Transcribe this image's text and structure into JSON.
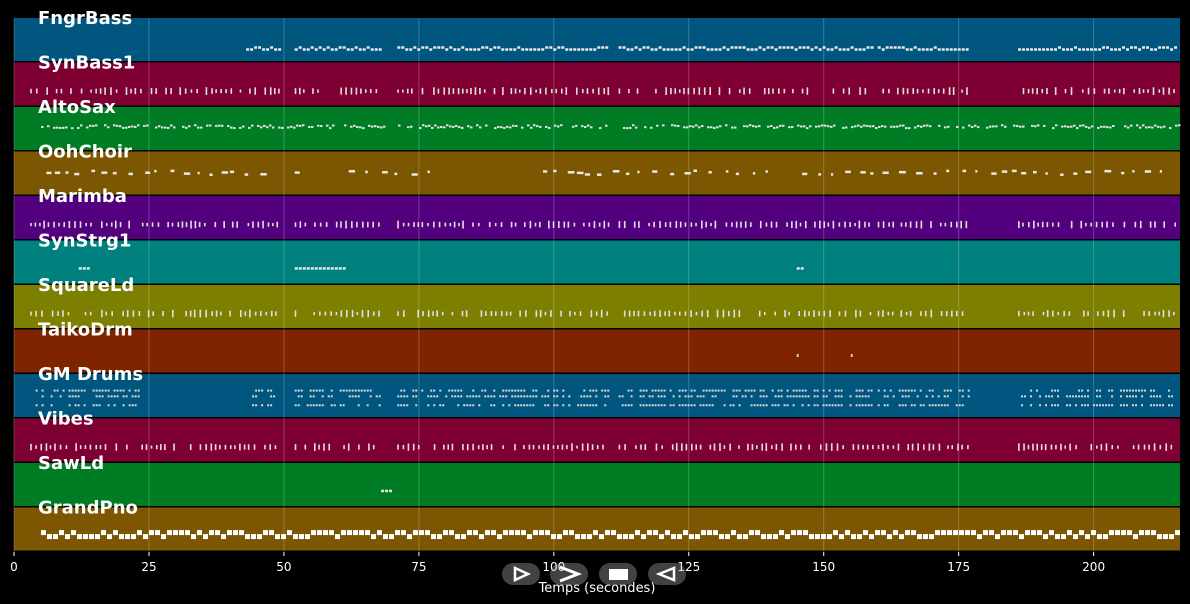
{
  "chart_data": {
    "type": "piano-roll",
    "xlabel": "Temps (secondes)",
    "xlim": [
      0,
      216
    ],
    "x_ticks": [
      0,
      25,
      50,
      75,
      100,
      125,
      150,
      175,
      200
    ],
    "tracks": [
      {
        "name": "FngrBass",
        "color": "#00567f",
        "segments": [
          [
            43,
            49
          ],
          [
            52,
            68
          ],
          [
            71,
            110
          ],
          [
            112,
            159
          ],
          [
            160,
            177
          ],
          [
            186,
            215
          ]
        ],
        "style": "bass"
      },
      {
        "name": "SynBass1",
        "color": "#7e0033",
        "segments": [
          [
            3,
            49
          ],
          [
            52,
            68
          ],
          [
            71,
            110
          ],
          [
            112,
            159
          ],
          [
            160,
            177
          ],
          [
            186,
            215
          ]
        ],
        "style": "ticks"
      },
      {
        "name": "AltoSax",
        "color": "#007c24",
        "segments": [
          [
            5,
            216
          ]
        ],
        "style": "dense"
      },
      {
        "name": "OohChoir",
        "color": "#7c5600",
        "segments": [
          [
            6,
            46
          ],
          [
            52,
            54
          ],
          [
            62,
            78
          ],
          [
            98,
            106
          ],
          [
            108,
            140
          ],
          [
            146,
            200
          ],
          [
            202,
            214
          ]
        ],
        "style": "sparse"
      },
      {
        "name": "Marimba",
        "color": "#53007f",
        "segments": [
          [
            3,
            49
          ],
          [
            52,
            68
          ],
          [
            71,
            110
          ],
          [
            112,
            159
          ],
          [
            160,
            177
          ],
          [
            186,
            215
          ]
        ],
        "style": "ticks"
      },
      {
        "name": "SynStrg1",
        "color": "#00807f",
        "segments": [
          [
            12,
            14
          ],
          [
            52,
            61
          ],
          [
            145,
            146
          ]
        ],
        "style": "short"
      },
      {
        "name": "SquareLd",
        "color": "#7c7f00",
        "segments": [
          [
            3,
            49
          ],
          [
            52,
            68
          ],
          [
            71,
            110
          ],
          [
            112,
            159
          ],
          [
            160,
            177
          ],
          [
            186,
            215
          ]
        ],
        "style": "ticks"
      },
      {
        "name": "TaikoDrm",
        "color": "#7f2400",
        "segments": [
          [
            145,
            146
          ],
          [
            155,
            156
          ]
        ],
        "style": "dots"
      },
      {
        "name": "GM Drums",
        "color": "#00567f",
        "segments": [
          [
            4,
            23
          ],
          [
            43,
            49
          ],
          [
            52,
            68
          ],
          [
            71,
            110
          ],
          [
            112,
            159
          ],
          [
            160,
            177
          ],
          [
            186,
            215
          ]
        ],
        "style": "drums"
      },
      {
        "name": "Vibes",
        "color": "#7e0033",
        "segments": [
          [
            3,
            49
          ],
          [
            52,
            68
          ],
          [
            71,
            110
          ],
          [
            112,
            159
          ],
          [
            160,
            177
          ],
          [
            186,
            215
          ]
        ],
        "style": "ticks"
      },
      {
        "name": "SawLd",
        "color": "#007c24",
        "segments": [
          [
            68,
            70
          ]
        ],
        "style": "short"
      },
      {
        "name": "GrandPno",
        "color": "#7c5600",
        "segments": [
          [
            5,
            216
          ]
        ],
        "style": "piano"
      }
    ]
  },
  "controls": {
    "play_icon": "play-outline-icon",
    "forward_icon": "fast-forward-icon",
    "stop_icon": "stop-icon",
    "rewind_icon": "rewind-icon"
  }
}
